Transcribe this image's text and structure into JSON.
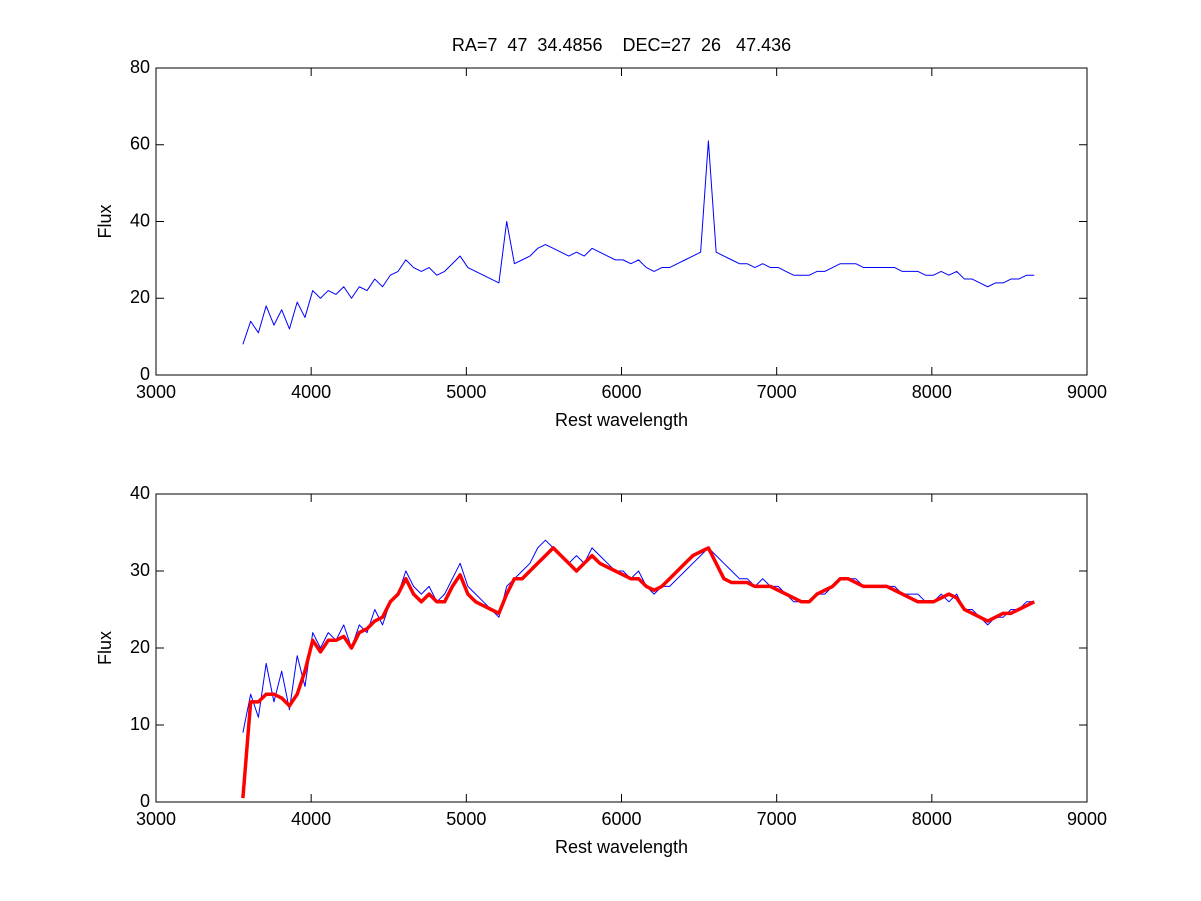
{
  "chart_data": [
    {
      "type": "line",
      "title": "RA=7  47  34.4856    DEC=27  26   47.436",
      "xlabel": "Rest wavelength",
      "ylabel": "Flux",
      "xlim": [
        3000,
        9000
      ],
      "ylim": [
        0,
        80
      ],
      "xticks": [
        3000,
        4000,
        5000,
        6000,
        7000,
        8000,
        9000
      ],
      "yticks": [
        0,
        20,
        40,
        60,
        80
      ],
      "x": [
        3560,
        3610,
        3660,
        3710,
        3760,
        3810,
        3860,
        3910,
        3960,
        4010,
        4060,
        4110,
        4160,
        4210,
        4260,
        4310,
        4360,
        4410,
        4460,
        4510,
        4560,
        4610,
        4660,
        4710,
        4760,
        4810,
        4860,
        4910,
        4960,
        5010,
        5060,
        5110,
        5160,
        5210,
        5260,
        5310,
        5360,
        5410,
        5460,
        5510,
        5560,
        5610,
        5660,
        5710,
        5760,
        5810,
        5860,
        5910,
        5960,
        6010,
        6060,
        6110,
        6160,
        6210,
        6260,
        6310,
        6360,
        6410,
        6460,
        6510,
        6560,
        6610,
        6660,
        6710,
        6760,
        6810,
        6860,
        6910,
        6960,
        7010,
        7060,
        7110,
        7160,
        7210,
        7260,
        7310,
        7360,
        7410,
        7460,
        7510,
        7560,
        7610,
        7660,
        7710,
        7760,
        7810,
        7860,
        7910,
        7960,
        8010,
        8060,
        8110,
        8160,
        8210,
        8260,
        8310,
        8360,
        8410,
        8460,
        8510,
        8560,
        8610,
        8660
      ],
      "series": [
        {
          "color": "#0000ff",
          "width": 1,
          "values": [
            8,
            14,
            11,
            18,
            13,
            17,
            12,
            19,
            15,
            22,
            20,
            22,
            21,
            23,
            20,
            23,
            22,
            25,
            23,
            26,
            27,
            30,
            28,
            27,
            28,
            26,
            27,
            29,
            31,
            28,
            27,
            26,
            25,
            24,
            40,
            29,
            30,
            31,
            33,
            34,
            33,
            32,
            31,
            32,
            31,
            33,
            32,
            31,
            30,
            30,
            29,
            30,
            28,
            27,
            28,
            28,
            29,
            30,
            31,
            32,
            61,
            32,
            31,
            30,
            29,
            29,
            28,
            29,
            28,
            28,
            27,
            26,
            26,
            26,
            27,
            27,
            28,
            29,
            29,
            29,
            28,
            28,
            28,
            28,
            28,
            27,
            27,
            27,
            26,
            26,
            27,
            26,
            27,
            25,
            25,
            24,
            23,
            24,
            24,
            25,
            25,
            26,
            26
          ]
        }
      ]
    },
    {
      "type": "line",
      "xlabel": "Rest wavelength",
      "ylabel": "Flux",
      "xlim": [
        3000,
        9000
      ],
      "ylim": [
        0,
        40
      ],
      "xticks": [
        3000,
        4000,
        5000,
        6000,
        7000,
        8000,
        9000
      ],
      "yticks": [
        0,
        10,
        20,
        30,
        40
      ],
      "x": [
        3560,
        3610,
        3660,
        3710,
        3760,
        3810,
        3860,
        3910,
        3960,
        4010,
        4060,
        4110,
        4160,
        4210,
        4260,
        4310,
        4360,
        4410,
        4460,
        4510,
        4560,
        4610,
        4660,
        4710,
        4760,
        4810,
        4860,
        4910,
        4960,
        5010,
        5060,
        5110,
        5160,
        5210,
        5260,
        5310,
        5360,
        5410,
        5460,
        5510,
        5560,
        5610,
        5660,
        5710,
        5760,
        5810,
        5860,
        5910,
        5960,
        6010,
        6060,
        6110,
        6160,
        6210,
        6260,
        6310,
        6360,
        6410,
        6460,
        6510,
        6560,
        6610,
        6660,
        6710,
        6760,
        6810,
        6860,
        6910,
        6960,
        7010,
        7060,
        7110,
        7160,
        7210,
        7260,
        7310,
        7360,
        7410,
        7460,
        7510,
        7560,
        7610,
        7660,
        7710,
        7760,
        7810,
        7860,
        7910,
        7960,
        8010,
        8060,
        8110,
        8160,
        8210,
        8260,
        8310,
        8360,
        8410,
        8460,
        8510,
        8560,
        8610,
        8660
      ],
      "series": [
        {
          "color": "#0000ff",
          "width": 1,
          "values": [
            9,
            14,
            11,
            18,
            13,
            17,
            12,
            19,
            15,
            22,
            20,
            22,
            21,
            23,
            20,
            23,
            22,
            25,
            23,
            26,
            27,
            30,
            28,
            27,
            28,
            26,
            27,
            29,
            31,
            28,
            27,
            26,
            25,
            24,
            28,
            29,
            30,
            31,
            33,
            34,
            33,
            32,
            31,
            32,
            31,
            33,
            32,
            31,
            30,
            30,
            29,
            30,
            28,
            27,
            28,
            28,
            29,
            30,
            31,
            32,
            33,
            32,
            31,
            30,
            29,
            29,
            28,
            29,
            28,
            28,
            27,
            26,
            26,
            26,
            27,
            27,
            28,
            29,
            29,
            29,
            28,
            28,
            28,
            28,
            28,
            27,
            27,
            27,
            26,
            26,
            27,
            26,
            27,
            25,
            25,
            24,
            23,
            24,
            24,
            25,
            25,
            26,
            26
          ]
        },
        {
          "color": "#ff0000",
          "width": 3.5,
          "values": [
            0.5,
            13,
            13,
            14,
            14,
            13.5,
            12.5,
            14,
            17,
            21,
            19.5,
            21,
            21,
            21.5,
            20,
            22,
            22.5,
            23.5,
            24,
            26,
            27,
            29,
            27,
            26,
            27,
            26,
            26,
            28,
            29.5,
            27,
            26,
            25.5,
            25,
            24.5,
            27,
            29,
            29,
            30,
            31,
            32,
            33,
            32,
            31,
            30,
            31,
            32,
            31,
            30.5,
            30,
            29.5,
            29,
            29,
            28,
            27.5,
            28,
            29,
            30,
            31,
            32,
            32.5,
            33,
            31,
            29,
            28.5,
            28.5,
            28.5,
            28,
            28,
            28,
            27.5,
            27,
            26.5,
            26,
            26,
            27,
            27.5,
            28,
            29,
            29,
            28.5,
            28,
            28,
            28,
            28,
            27.5,
            27,
            26.5,
            26,
            26,
            26,
            26.5,
            27,
            26.5,
            25,
            24.5,
            24,
            23.5,
            24,
            24.5,
            24.5,
            25,
            25.5,
            26
          ]
        }
      ]
    }
  ]
}
